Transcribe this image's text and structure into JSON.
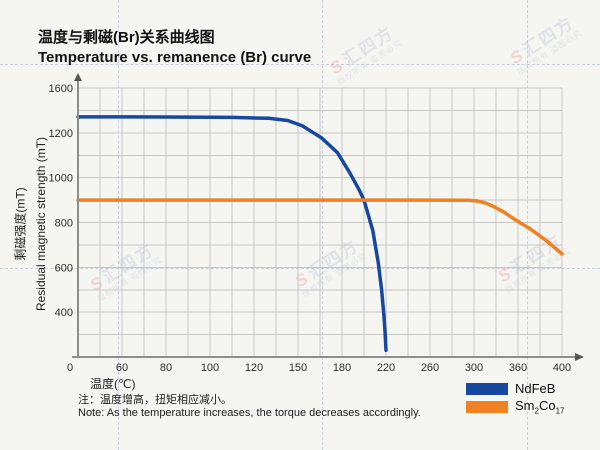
{
  "header": {
    "title_cn": "温度与剩磁(Br)关系曲线图",
    "title_en": "Temperature vs. remanence (Br) curve"
  },
  "chart_data": {
    "type": "line",
    "title": "Temperature vs. remanence (Br) curve",
    "xlabel": "温度(℃)",
    "ylabel_cn": "剩磁强度(mT)",
    "ylabel_en": "Residual magnetic strength (mT)",
    "x_ticks": [
      0,
      60,
      80,
      100,
      120,
      150,
      180,
      220,
      260,
      300,
      360,
      400
    ],
    "y_ticks": [
      0,
      400,
      600,
      800,
      1000,
      1200,
      1600
    ],
    "grid": true,
    "minor_grid": true,
    "legend_position": "bottom-right",
    "colors": {
      "grid": "#c7c7c6",
      "axis": "#8d8d8c",
      "arrow": "#555555",
      "tick_text": "#2e2e2e"
    },
    "series": [
      {
        "name": "NdFeB",
        "color": "#17479e",
        "points": [
          [
            0,
            1342
          ],
          [
            40,
            1342
          ],
          [
            80,
            1341
          ],
          [
            110,
            1338
          ],
          [
            130,
            1330
          ],
          [
            143,
            1310
          ],
          [
            153,
            1262
          ],
          [
            166,
            1178
          ],
          [
            177,
            1111
          ],
          [
            187,
            1022
          ],
          [
            196,
            942
          ],
          [
            200,
            900
          ],
          [
            208,
            764
          ],
          [
            213,
            620
          ],
          [
            216,
            500
          ],
          [
            218,
            380
          ],
          [
            219,
            250
          ],
          [
            220,
            60
          ]
        ]
      },
      {
        "name": "Sm2Co17",
        "color": "#ef8122",
        "points": [
          [
            0,
            900
          ],
          [
            80,
            900
          ],
          [
            160,
            900
          ],
          [
            240,
            900
          ],
          [
            295,
            899
          ],
          [
            305,
            896
          ],
          [
            315,
            888
          ],
          [
            325,
            874
          ],
          [
            340,
            848
          ],
          [
            355,
            815
          ],
          [
            370,
            775
          ],
          [
            385,
            722
          ],
          [
            400,
            660
          ]
        ]
      }
    ]
  },
  "legend": {
    "ndfeb": "NdFeB",
    "sm_base1": "Sm",
    "sm_sub1": "2",
    "sm_base2": "Co",
    "sm_sub2": "17"
  },
  "notes": {
    "cn": "注：温度增高，扭矩相应减小。",
    "en": "Note: As the temperature increases, the torque decreases accordingly."
  },
  "watermark": {
    "logo": "S",
    "text": "汇四方",
    "subtext": "版权所有 盗图必究"
  }
}
